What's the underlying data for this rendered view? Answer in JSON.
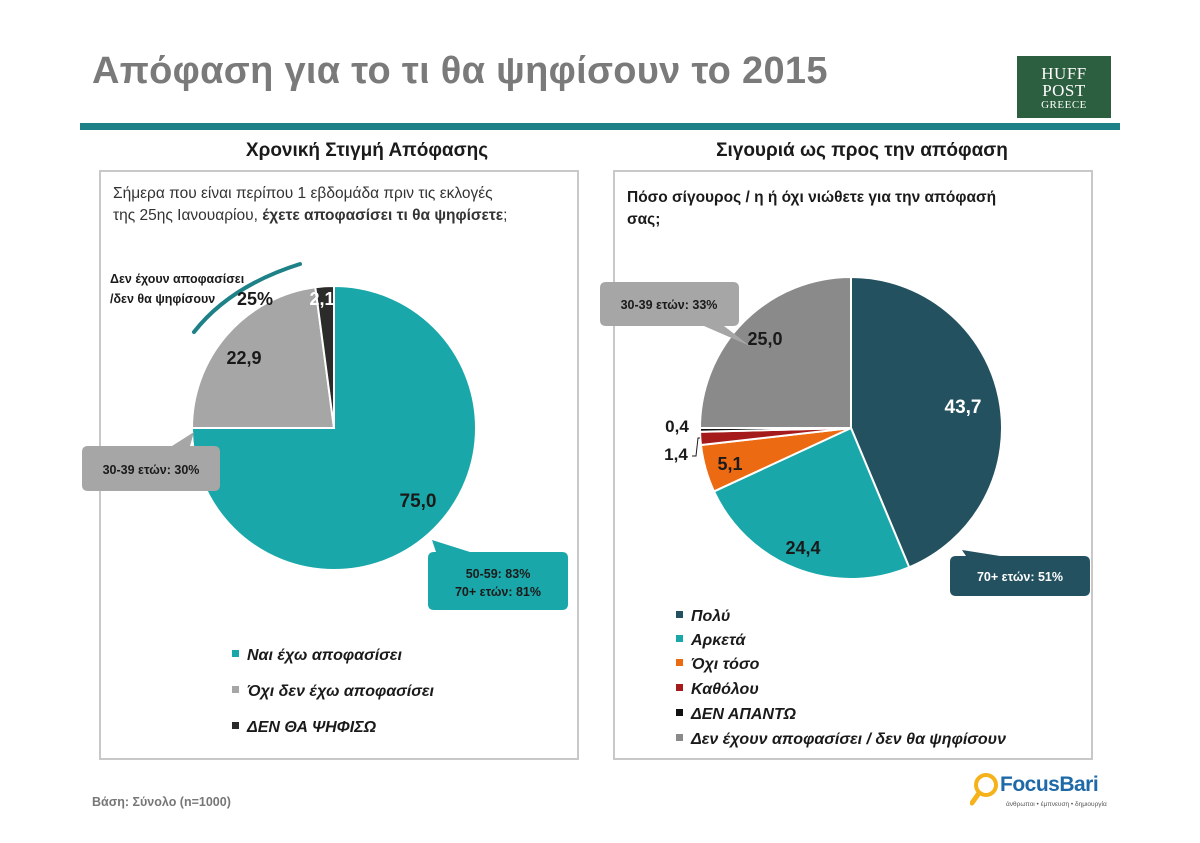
{
  "header": {
    "title": "Απόφαση για το τι θα ψηφίσουν το 2015",
    "logo_line1": "HUFF",
    "logo_line2": "POST",
    "logo_line3": "GREECE"
  },
  "colors": {
    "accent_teal": "#1e8187",
    "teal": "#1aa7a9",
    "gray": "#a6a6a6",
    "dark": "#2b2b2b",
    "navy": "#23515f",
    "orange": "#ec6a12",
    "red": "#a51a1a"
  },
  "left": {
    "panel_title": "Χρονική Στιγμή Απόφασης",
    "question_line1": "Σήμερα που είναι περίπου 1 εβδομάδα πριν τις εκλογές",
    "question_line2_normal": "της 25ης Ιανουαρίου, ",
    "question_line2_bold": "έχετε αποφασίσει τι  θα ψηφίσετε",
    "question_line2_end": ";",
    "arc_label_line1": "Δεν έχουν αποφασίσει",
    "arc_label_line2": "/δεν θα ψηφίσουν",
    "arc_label_value": "25%",
    "callout_gray": "30-39 ετών: 30%",
    "callout_teal_line1": "50-59: 83%",
    "callout_teal_line2": "70+ ετών: 81%",
    "value_labels": [
      "75,0",
      "22,9",
      "2,1"
    ],
    "legend": [
      "Ναι έχω αποφασίσει",
      "Όχι δεν έχω αποφασίσει",
      "ΔΕΝ ΘΑ ΨΗΦΙΣΩ"
    ]
  },
  "right": {
    "panel_title": "Σιγουριά ως προς την απόφαση",
    "question_line1": "Πόσο σίγουρος / η ή όχι νιώθετε για την απόφασή",
    "question_line2": "σας;",
    "callout_gray": "30-39 ετών: 33%",
    "callout_navy": "70+ ετών: 51%",
    "value_labels": [
      "43,7",
      "24,4",
      "5,1",
      "1,4",
      "0,4",
      "25,0"
    ],
    "legend": [
      "Πολύ",
      "Αρκετά",
      "Όχι τόσο",
      "Καθόλου",
      "ΔΕΝ ΑΠΑΝΤΩ",
      "Δεν έχουν αποφασίσει / δεν θα ψηφίσουν"
    ]
  },
  "footer": {
    "base_note": "Βάση: Σύνολο (n=1000)",
    "focus_word": "FocusBari",
    "focus_tagline": "άνθρωποι • έμπνευση • δημιουργία"
  },
  "chart_data": [
    {
      "type": "pie",
      "title": "Χρονική Στιγμή Απόφασης",
      "categories": [
        "Ναι έχω αποφασίσει",
        "Όχι δεν έχω αποφασίσει",
        "ΔΕΝ ΘΑ ΨΗΦΙΣΩ"
      ],
      "values": [
        75.0,
        22.9,
        2.1
      ],
      "colors": [
        "#1aa7a9",
        "#a6a6a6",
        "#2b2b2b"
      ],
      "legend": "bottom"
    },
    {
      "type": "pie",
      "title": "Σιγουριά ως προς την απόφαση",
      "categories": [
        "Πολύ",
        "Αρκετά",
        "Όχι τόσο",
        "Καθόλου",
        "ΔΕΝ ΑΠΑΝΤΩ",
        "Δεν έχουν αποφασίσει / δεν θα ψηφίσουν"
      ],
      "values": [
        43.7,
        24.4,
        5.1,
        1.4,
        0.4,
        25.0
      ],
      "colors": [
        "#23515f",
        "#1aa7a9",
        "#ec6a12",
        "#a51a1a",
        "#111111",
        "#8a8a8a"
      ],
      "legend": "bottom"
    }
  ]
}
